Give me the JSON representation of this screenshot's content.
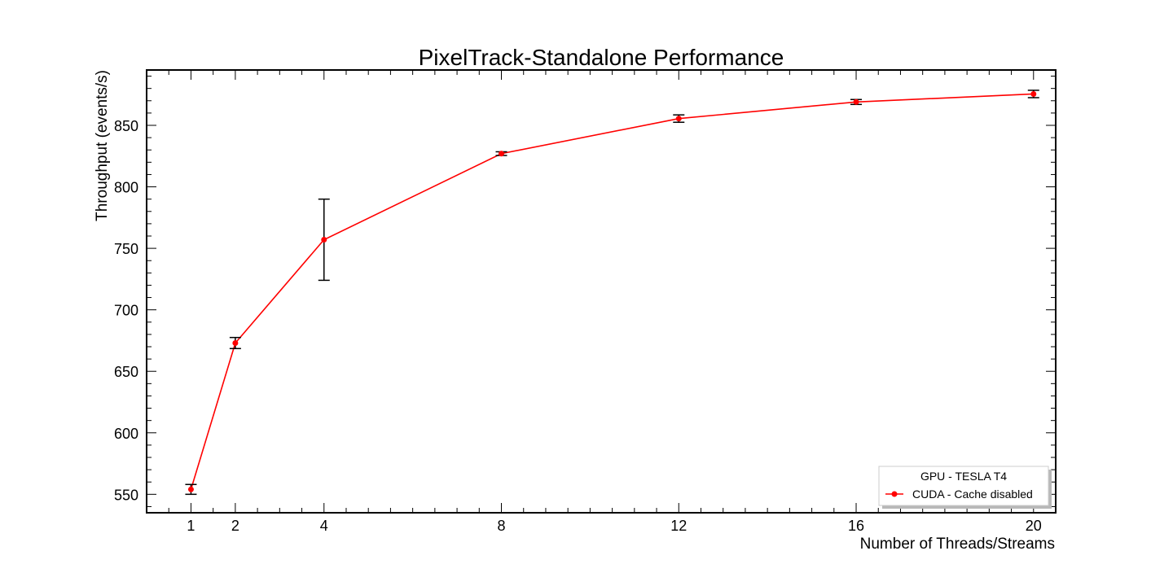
{
  "chart_data": {
    "type": "line",
    "title": "PixelTrack-Standalone Performance",
    "xlabel": "Number of Threads/Streams",
    "ylabel": "Throughput (events/s)",
    "xlim": [
      0,
      20.5
    ],
    "ylim": [
      535,
      895
    ],
    "xticks": [
      1,
      2,
      4,
      8,
      12,
      16,
      20
    ],
    "yticks": [
      550,
      600,
      650,
      700,
      750,
      800,
      850
    ],
    "grid": false,
    "legend": {
      "placement": "bottom-right",
      "header": "GPU - TESLA T4"
    },
    "series": [
      {
        "name": "CUDA - Cache disabled",
        "color": "#ff0000",
        "errorbar_color": "#000000",
        "x": [
          1,
          2,
          4,
          8,
          12,
          16,
          20
        ],
        "y": [
          554,
          673,
          757,
          827,
          855.5,
          869,
          875.5
        ],
        "yerr": [
          4,
          4.5,
          33,
          1.5,
          3,
          2,
          3
        ]
      }
    ]
  }
}
